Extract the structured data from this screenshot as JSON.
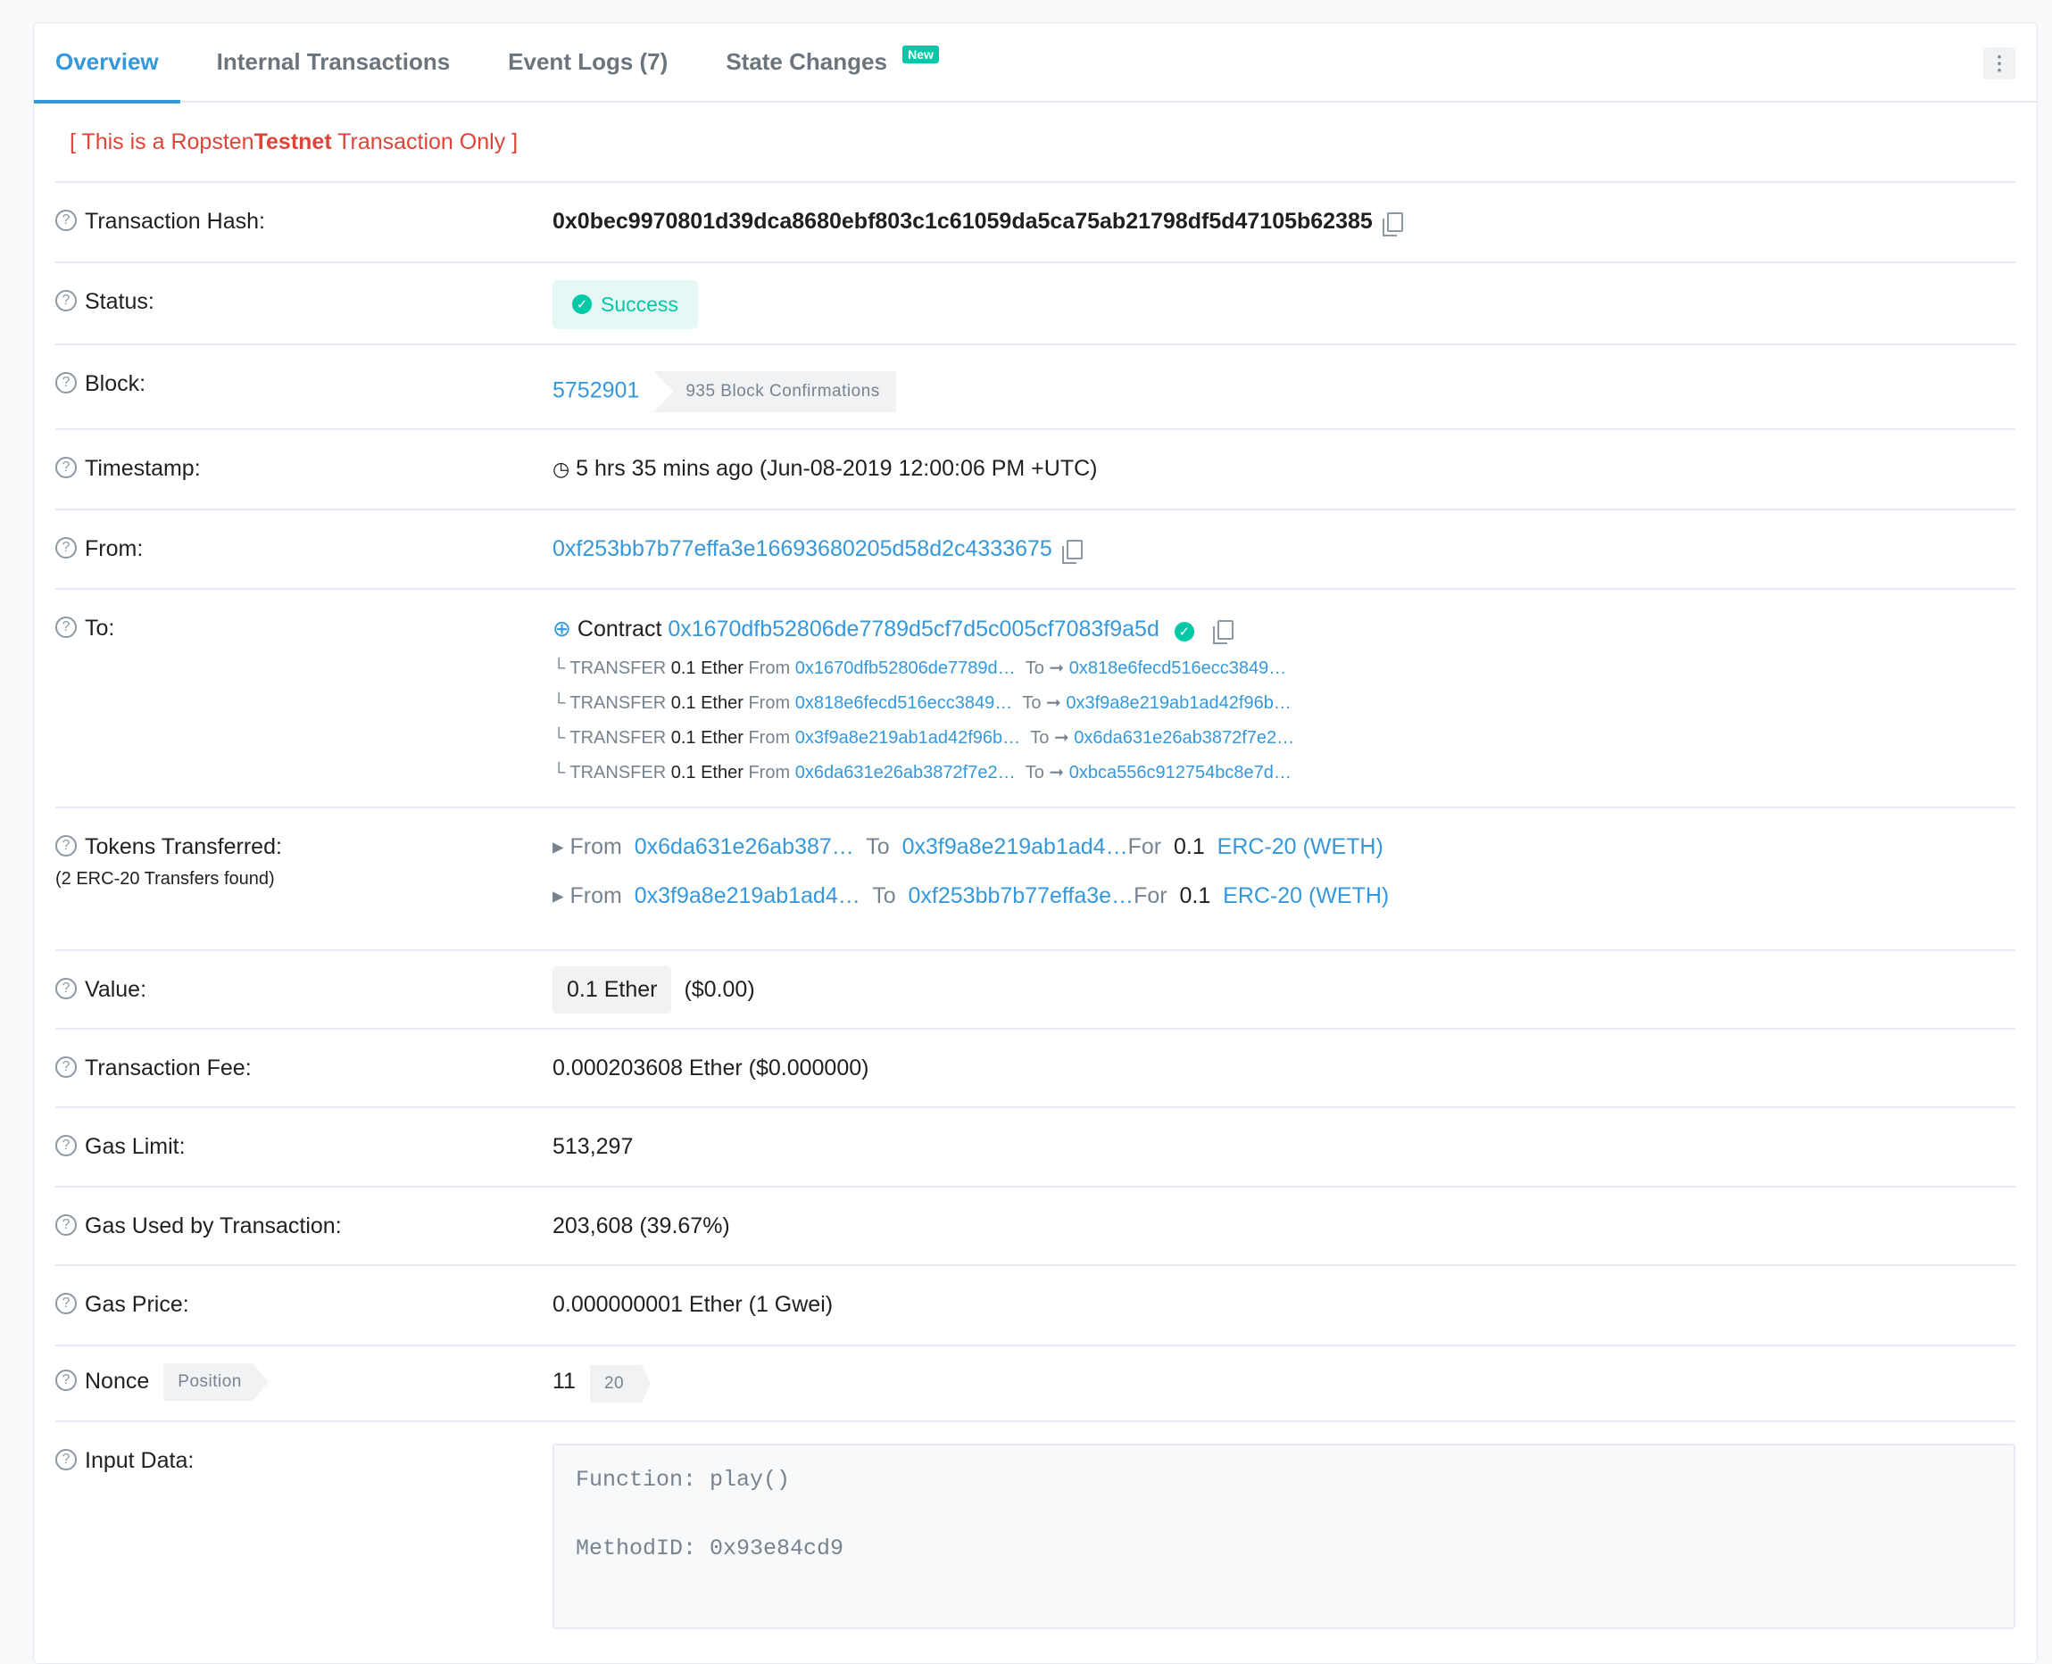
{
  "tabs": [
    {
      "label": "Overview"
    },
    {
      "label": "Internal Transactions"
    },
    {
      "label": "Event Logs (7)"
    },
    {
      "label": "State Changes",
      "badge": "New"
    }
  ],
  "notice": {
    "pre": "[ This is a Ropsten ",
    "bold": "Testnet",
    "post": " Transaction Only ]"
  },
  "labels": {
    "hash": "Transaction Hash:",
    "status": "Status:",
    "block": "Block:",
    "timestamp": "Timestamp:",
    "from": "From:",
    "to": "To:",
    "tokens": "Tokens Transferred:",
    "tokens_sub": "(2 ERC-20 Transfers found)",
    "value": "Value:",
    "fee": "Transaction Fee:",
    "gas_limit": "Gas Limit:",
    "gas_used": "Gas Used by Transaction:",
    "gas_price": "Gas Price:",
    "nonce": "Nonce",
    "position": "Position",
    "input": "Input Data:"
  },
  "tx": {
    "hash": "0x0bec9970801d39dca8680ebf803c1c61059da5ca75ab21798df5d47105b62385",
    "status": "Success",
    "block": "5752901",
    "confirmations": "935 Block Confirmations",
    "timestamp": "5 hrs 35 mins ago (Jun-08-2019 12:00:06 PM +UTC)",
    "from": "0xf253bb7b77effa3e16693680205d58d2c4333675",
    "to_prefix": "Contract",
    "to": "0x1670dfb52806de7789d5cf7d5c005cf7083f9a5d",
    "internal": [
      {
        "type": "TRANSFER",
        "amount": "0.1 Ether",
        "from_label": "From",
        "from": "0x1670dfb52806de7789d…",
        "to_label": "To",
        "to": "0x818e6fecd516ecc3849…"
      },
      {
        "type": "TRANSFER",
        "amount": "0.1 Ether",
        "from_label": "From",
        "from": "0x818e6fecd516ecc3849…",
        "to_label": "To",
        "to": "0x3f9a8e219ab1ad42f96b…"
      },
      {
        "type": "TRANSFER",
        "amount": "0.1 Ether",
        "from_label": "From",
        "from": "0x3f9a8e219ab1ad42f96b…",
        "to_label": "To",
        "to": "0x6da631e26ab3872f7e2…"
      },
      {
        "type": "TRANSFER",
        "amount": "0.1 Ether",
        "from_label": "From",
        "from": "0x6da631e26ab3872f7e2…",
        "to_label": "To",
        "to": "0xbca556c912754bc8e7d…"
      }
    ],
    "tokens": [
      {
        "from_label": "From",
        "from": "0x6da631e26ab387…",
        "to_label": "To",
        "to": "0x3f9a8e219ab1ad4…",
        "for_label": "For",
        "amount": "0.1",
        "token": "ERC-20 (WETH)"
      },
      {
        "from_label": "From",
        "from": "0x3f9a8e219ab1ad4…",
        "to_label": "To",
        "to": "0xf253bb7b77effa3e…",
        "for_label": "For",
        "amount": "0.1",
        "token": "ERC-20 (WETH)"
      }
    ],
    "value": "0.1 Ether",
    "value_usd": "($0.00)",
    "fee": "0.000203608 Ether ($0.000000)",
    "gas_limit": "513,297",
    "gas_used": "203,608 (39.67%)",
    "gas_price": "0.000000001 Ether (1 Gwei)",
    "nonce": "11",
    "position": "20",
    "input_lines": [
      "Function: play()",
      "MethodID: 0x93e84cd9"
    ]
  }
}
